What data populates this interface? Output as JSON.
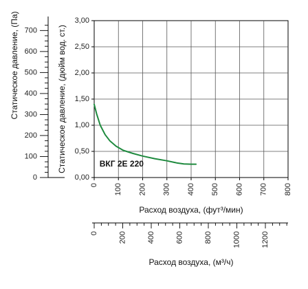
{
  "chart_data": {
    "type": "line",
    "x_axis_label": "Расход воздуха, (фут³/мин)",
    "x_ticks": [
      0,
      100,
      200,
      300,
      400,
      500,
      600,
      700,
      800
    ],
    "x_range": [
      0,
      800
    ],
    "secondary_x_axis_label": "Расход воздуха, (м³/ч)",
    "secondary_x_ticks": [
      0,
      200,
      400,
      600,
      800,
      1000,
      1200
    ],
    "secondary_x_range": [
      0,
      1359
    ],
    "y_axis_label": "Статическое давление, (дюйм вод. ст.)",
    "y_tick_labels": [
      "0,00",
      "0,50",
      "1,00",
      "1,50",
      "2,00",
      "2,50",
      "3,00"
    ],
    "y_range": [
      0,
      3
    ],
    "secondary_y_axis_label": "Статическое давление, (Па)",
    "secondary_y_ticks": [
      0,
      100,
      200,
      300,
      400,
      500,
      600,
      700
    ],
    "secondary_y_range": [
      0,
      747
    ],
    "grid": true,
    "series": [
      {
        "name": "ВКГ 2Е 220",
        "color": "#1e8a3e",
        "points": [
          [
            0,
            1.4
          ],
          [
            10,
            1.22
          ],
          [
            25,
            1.0
          ],
          [
            45,
            0.82
          ],
          [
            65,
            0.7
          ],
          [
            90,
            0.6
          ],
          [
            120,
            0.52
          ],
          [
            160,
            0.46
          ],
          [
            200,
            0.41
          ],
          [
            250,
            0.36
          ],
          [
            300,
            0.32
          ],
          [
            340,
            0.28
          ],
          [
            370,
            0.26
          ],
          [
            400,
            0.255
          ],
          [
            420,
            0.255
          ]
        ]
      }
    ]
  }
}
